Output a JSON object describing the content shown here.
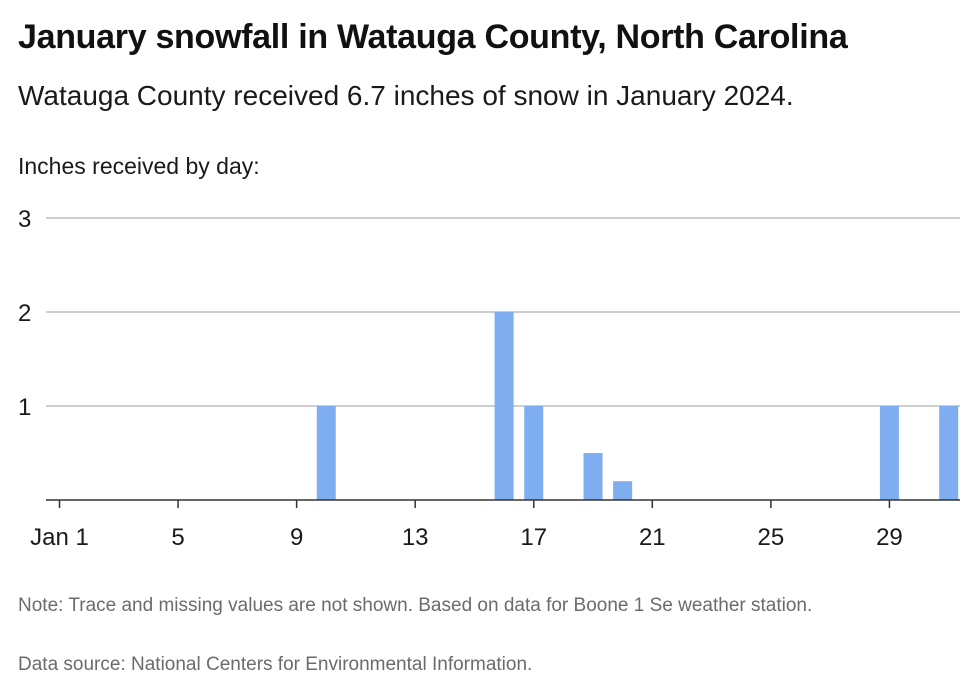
{
  "title": "January snowfall in Watauga County, North Carolina",
  "subtitle": "Watauga County received 6.7 inches of snow in January 2024.",
  "note": "Note: Trace and missing values are not shown. Based on data for Boone 1 Se weather station.",
  "source": "Data source: National Centers for Environmental Information.",
  "colors": {
    "bar": "#7eaef0",
    "grid": "#bdbdbd",
    "axis": "#333333"
  },
  "chart_data": {
    "type": "bar",
    "title": "January snowfall in Watauga County, North Carolina",
    "ylabel": "Inches received by day:",
    "xlabel": "",
    "ylim": [
      0,
      3
    ],
    "yticks": [
      "1",
      "2",
      "3"
    ],
    "xticks": [
      {
        "day": 1,
        "label": "Jan 1"
      },
      {
        "day": 5,
        "label": "5"
      },
      {
        "day": 9,
        "label": "9"
      },
      {
        "day": 13,
        "label": "13"
      },
      {
        "day": 17,
        "label": "17"
      },
      {
        "day": 21,
        "label": "21"
      },
      {
        "day": 25,
        "label": "25"
      },
      {
        "day": 29,
        "label": "29"
      }
    ],
    "days": [
      1,
      2,
      3,
      4,
      5,
      6,
      7,
      8,
      9,
      10,
      11,
      12,
      13,
      14,
      15,
      16,
      17,
      18,
      19,
      20,
      21,
      22,
      23,
      24,
      25,
      26,
      27,
      28,
      29,
      30,
      31
    ],
    "values": [
      null,
      null,
      null,
      null,
      null,
      null,
      null,
      null,
      null,
      1,
      null,
      null,
      null,
      null,
      null,
      2,
      1,
      null,
      0.5,
      0.2,
      null,
      null,
      null,
      null,
      null,
      null,
      null,
      null,
      1,
      null,
      1
    ],
    "grid": true
  }
}
